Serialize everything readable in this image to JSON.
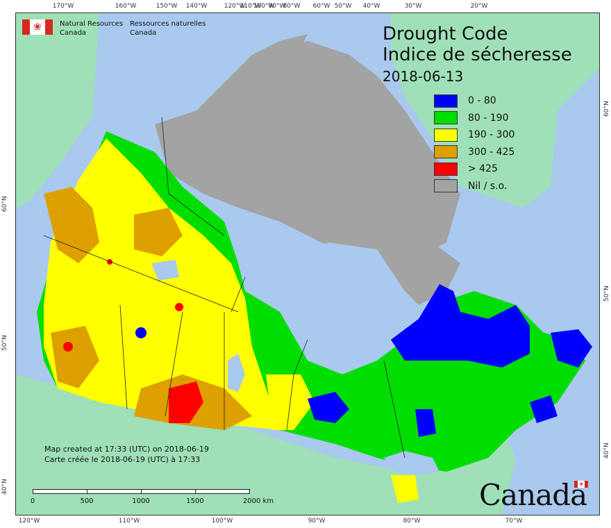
{
  "agency": {
    "en_line1": "Natural Resources",
    "en_line2": "Canada",
    "fr_line1": "Ressources naturelles",
    "fr_line2": "Canada"
  },
  "title": {
    "en": "Drought Code",
    "fr": "Indice de sécheresse",
    "date": "2018-06-13"
  },
  "legend": [
    {
      "label": "0 - 80",
      "color": "#0000ff"
    },
    {
      "label": "80 - 190",
      "color": "#00dd00"
    },
    {
      "label": "190 - 300",
      "color": "#ffff00"
    },
    {
      "label": "300 - 425",
      "color": "#dda000"
    },
    {
      "label": "> 425",
      "color": "#ff0000"
    },
    {
      "label": "Nil / s.o.",
      "color": "#a3a3a3"
    }
  ],
  "colors": {
    "ocean": "#a9c9ee",
    "foreign_land": "#9fe0b8",
    "no_data": "#a3a3a3"
  },
  "note": {
    "en": "Map created at 17:33 (UTC) on 2018-06-19",
    "fr": "Carte créée le 2018-06-19 (UTC) à 17:33"
  },
  "scale": {
    "labels": [
      "0",
      "500",
      "1000",
      "1500",
      "2000 km"
    ]
  },
  "ticks": {
    "top": [
      "170°W",
      "160°W",
      "150°W",
      "140°W",
      "120°W",
      "110°W",
      "100°W",
      "90°W",
      "80°W",
      "60°W",
      "50°W",
      "40°W",
      "30°W",
      "20°W"
    ],
    "bottom": [
      "120°W",
      "110°W",
      "100°W",
      "90°W",
      "80°W",
      "70°W"
    ],
    "left": [
      "60°N",
      "50°N",
      "40°N"
    ],
    "right": [
      "60°N",
      "50°N",
      "40°N"
    ]
  },
  "wordmark": "Canada"
}
